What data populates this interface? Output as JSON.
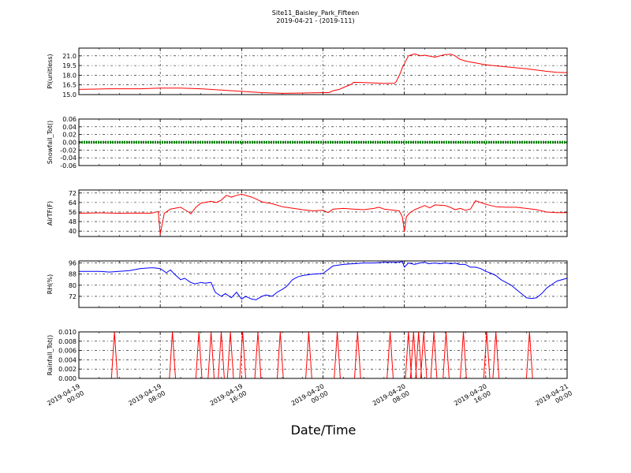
{
  "title": "Site11_Baisley_Park_Fifteen",
  "subtitle": "2019-04-21 - (2019-111)",
  "xlabel": "Date/Time",
  "x_ticks": [
    {
      "line1": "2019-04-19",
      "line2": "00:00",
      "hours": 0
    },
    {
      "line1": "2019-04-19",
      "line2": "08:00",
      "hours": 8
    },
    {
      "line1": "2019-04-19",
      "line2": "16:00",
      "hours": 16
    },
    {
      "line1": "2019-04-20",
      "line2": "00:00",
      "hours": 24
    },
    {
      "line1": "2019-04-20",
      "line2": "08:00",
      "hours": 32
    },
    {
      "line1": "2019-04-20",
      "line2": "16:00",
      "hours": 40
    },
    {
      "line1": "2019-04-21",
      "line2": "00:00",
      "hours": 48
    }
  ],
  "chart_data": [
    {
      "type": "line",
      "ylabel": "Pl(unitless)",
      "ylim": [
        15.0,
        22.2
      ],
      "yticks": [
        "15.0",
        "16.5",
        "18.0",
        "19.5",
        "21.0"
      ],
      "grid": true,
      "series": [
        {
          "color": "#ff0000",
          "x": [
            0,
            3,
            6,
            8,
            9,
            10,
            12,
            14,
            16,
            18,
            20,
            22,
            24,
            24.6,
            25,
            25.6,
            26,
            26.8,
            27,
            28,
            30,
            31,
            31.2,
            31.6,
            31.8,
            32,
            32.4,
            33,
            33.6,
            34,
            35,
            36,
            36.6,
            37,
            37.4,
            38,
            38.6,
            39,
            40,
            42,
            44,
            46,
            47,
            48
          ],
          "y": [
            15.8,
            15.9,
            15.9,
            16.0,
            16.0,
            16.0,
            15.9,
            15.7,
            15.5,
            15.3,
            15.2,
            15.25,
            15.3,
            15.3,
            15.6,
            15.8,
            16.1,
            16.6,
            16.9,
            16.85,
            16.75,
            16.75,
            17.0,
            18.3,
            19.2,
            19.8,
            21.0,
            21.3,
            21.0,
            21.1,
            20.8,
            21.2,
            21.25,
            21.0,
            20.5,
            20.2,
            20.0,
            19.9,
            19.6,
            19.3,
            19.0,
            18.6,
            18.45,
            18.4
          ]
        }
      ]
    },
    {
      "type": "line",
      "ylabel": "Snowfall_Tot()",
      "ylim": [
        -0.06,
        0.06
      ],
      "yticks": [
        "-0.06",
        "-0.04",
        "-0.02",
        "0.00",
        "0.02",
        "0.04",
        "0.06"
      ],
      "grid": true,
      "series": [
        {
          "color": "#008000",
          "x": [
            0,
            48
          ],
          "y": [
            0.0,
            0.0
          ]
        }
      ]
    },
    {
      "type": "line",
      "ylabel": "AirTF(F)",
      "ylim": [
        35.5,
        74.5
      ],
      "yticks": [
        "40",
        "48",
        "56",
        "64",
        "72"
      ],
      "grid": true,
      "series": [
        {
          "color": "#ff0000",
          "x": [
            0,
            2,
            4,
            6,
            7,
            7.4,
            7.8,
            8,
            8.4,
            9,
            10,
            10.4,
            10.8,
            11,
            11.5,
            12,
            13,
            13.5,
            14,
            14.5,
            15,
            15.5,
            16,
            17,
            17.4,
            18,
            19,
            20,
            22,
            23,
            24,
            24.5,
            25,
            26,
            27,
            28,
            29,
            29.5,
            30,
            31,
            31.5,
            31.8,
            32,
            32.2,
            32.5,
            33,
            34,
            34.5,
            35,
            36,
            36.5,
            37,
            37.5,
            38,
            38.5,
            39,
            40,
            41,
            42,
            43,
            44,
            45,
            46,
            47,
            48
          ],
          "y": [
            55,
            55.3,
            55,
            55.2,
            55,
            55.5,
            56.5,
            37.5,
            55,
            58.5,
            60,
            58,
            56,
            54.5,
            60,
            63.5,
            65,
            64,
            66,
            70,
            68.5,
            70,
            71,
            68.5,
            67,
            64.5,
            63,
            60.5,
            58,
            57,
            57.5,
            55.5,
            58.5,
            59,
            58.5,
            58,
            59,
            60,
            58.5,
            57.5,
            57,
            52,
            39.5,
            52,
            55,
            58,
            61.5,
            59.5,
            62,
            61.5,
            60,
            58,
            59,
            57.5,
            58.5,
            65.5,
            62.5,
            60.5,
            60,
            60,
            59,
            58,
            56,
            55.5,
            55.5
          ]
        }
      ]
    },
    {
      "type": "line",
      "ylabel": "RH(%)",
      "ylim": [
        64,
        97.5
      ],
      "yticks": [
        "72",
        "80",
        "88",
        "96"
      ],
      "grid": true,
      "series": [
        {
          "color": "#0000ff",
          "x": [
            0,
            2,
            3,
            5,
            6,
            7,
            7.4,
            8,
            8.6,
            9,
            9.4,
            10,
            10.4,
            11,
            11.4,
            12,
            12.4,
            13,
            13.4,
            14,
            14.4,
            15,
            15.5,
            16,
            16.4,
            17,
            17.4,
            18,
            18.4,
            19,
            19.5,
            20,
            20.4,
            21,
            21.5,
            22,
            23,
            24,
            25,
            26,
            27,
            28,
            29,
            30,
            31,
            31.4,
            31.8,
            32,
            32.4,
            33,
            33.5,
            34,
            34.4,
            35,
            35.5,
            36,
            36.6,
            37,
            37.4,
            38,
            38.5,
            39,
            39.5,
            40,
            40.4,
            41,
            41.5,
            42,
            42.5,
            43,
            43.5,
            44,
            44.5,
            45,
            45.5,
            46,
            47,
            48
          ],
          "y": [
            90,
            90,
            89.5,
            90.5,
            92,
            92.5,
            92.5,
            92,
            89,
            91,
            88,
            84,
            85,
            82,
            81,
            82,
            81.5,
            82,
            75,
            72,
            74,
            71,
            75,
            70,
            72,
            70,
            69.5,
            72,
            73,
            72,
            75,
            77,
            79,
            84,
            86,
            87,
            88,
            88.5,
            94,
            95,
            95.5,
            96,
            96,
            96.5,
            96.5,
            96.5,
            97,
            93,
            96,
            95,
            96,
            96.5,
            95.5,
            96,
            95.5,
            96,
            95.5,
            96,
            95,
            95,
            93,
            93,
            92,
            90,
            89,
            87,
            84,
            82,
            80,
            77,
            74,
            71,
            70.5,
            71,
            74,
            78,
            83,
            85
          ]
        }
      ]
    },
    {
      "type": "line",
      "ylabel": "Rainfall_Tot()",
      "ylim": [
        0.0,
        0.01
      ],
      "yticks": [
        "0.000",
        "0.002",
        "0.004",
        "0.006",
        "0.008",
        "0.010"
      ],
      "grid": true,
      "series": [
        {
          "color": "#ff0000",
          "spikes": [
            3.5,
            9.2,
            11.8,
            13.0,
            14.0,
            14.9,
            16.1,
            17.6,
            19.8,
            22.6,
            25.4,
            27.4,
            30.6,
            32.4,
            32.9,
            33.4,
            33.9,
            34.9,
            36.1,
            37.8,
            40.1,
            41.0,
            44.3
          ],
          "spike_value": 0.01
        }
      ]
    }
  ]
}
